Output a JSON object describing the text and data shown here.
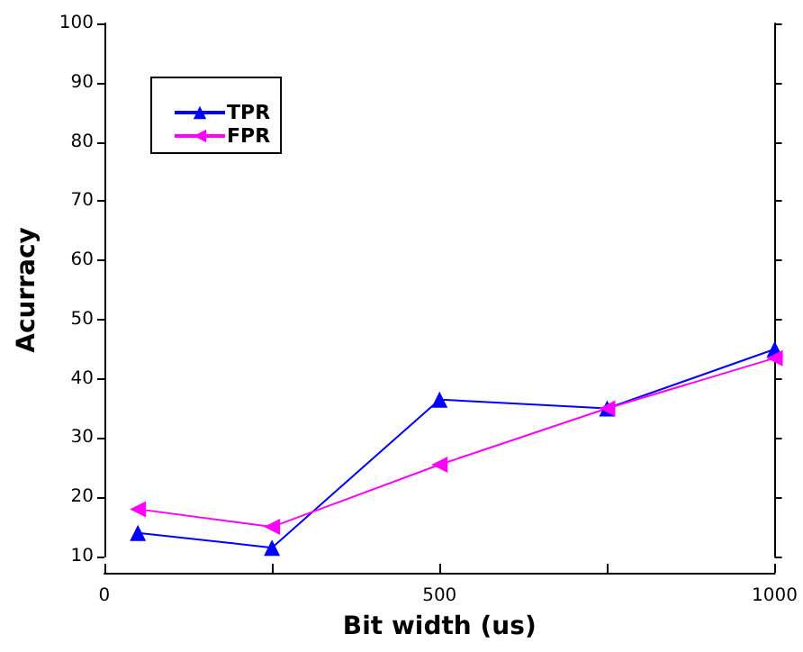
{
  "chart_data": {
    "type": "line",
    "xlabel": "Bit width (us)",
    "ylabel": "Acurracy",
    "xlim": [
      0,
      1000
    ],
    "xticks": [
      0,
      {
        "value": 250,
        "label": null
      },
      500,
      {
        "value": 750,
        "label": null
      },
      1000
    ],
    "ylim": [
      10,
      100
    ],
    "yticks": [
      10,
      20,
      30,
      40,
      50,
      60,
      70,
      80,
      90,
      100
    ],
    "grid": false,
    "legend": "top left",
    "line_style": "solid",
    "series": [
      {
        "name": "TPR",
        "color": "#0000ff",
        "marker": "triangle",
        "x": [
          50,
          250,
          500,
          750,
          1000
        ],
        "values": [
          14,
          11.5,
          36.5,
          35,
          45
        ]
      },
      {
        "name": "FPR",
        "color": "#ff00ff",
        "marker": "triangle-left",
        "x": [
          50,
          250,
          500,
          750,
          1000
        ],
        "values": [
          18,
          15,
          25.5,
          35,
          43.5
        ]
      }
    ]
  }
}
